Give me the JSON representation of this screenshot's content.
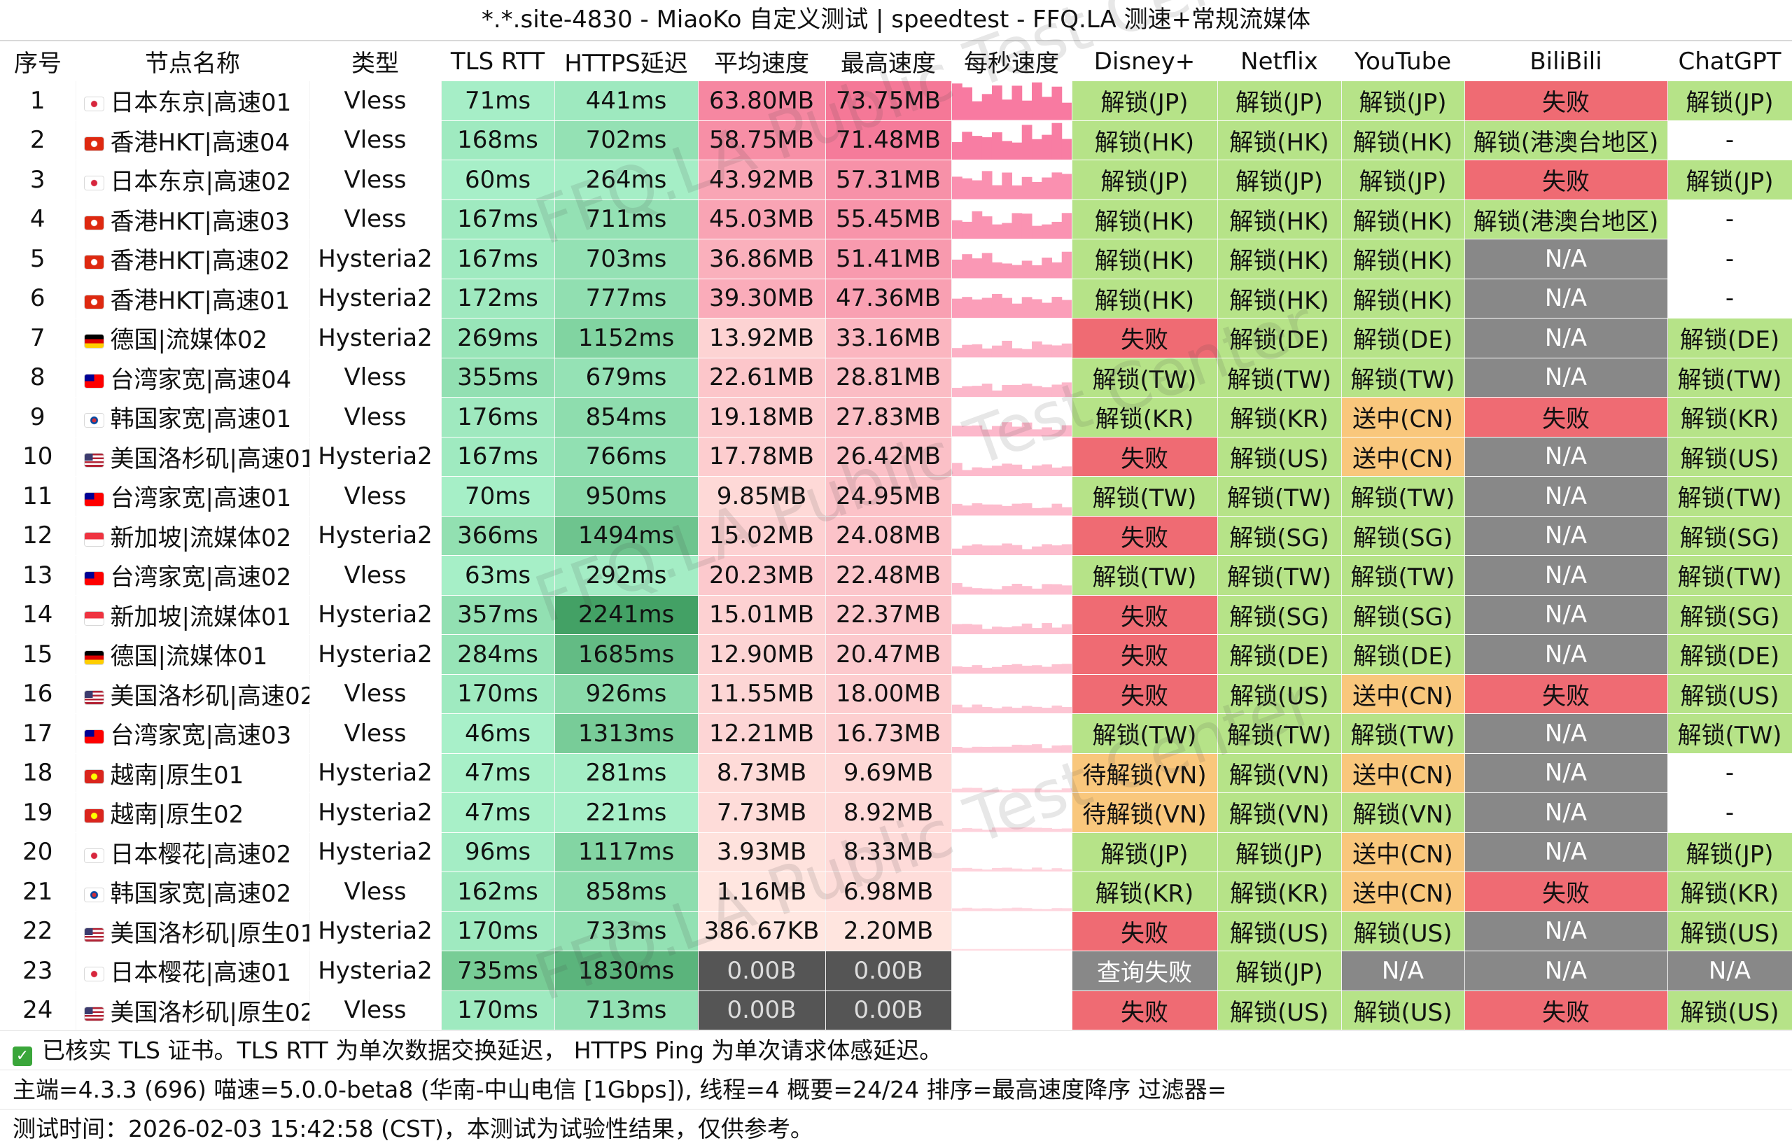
{
  "title": "*.*.site-4830 - MiaoKo 自定义测试 | speedtest - FFQ.LA 测速+常规流媒体",
  "headers": [
    "序号",
    "节点名称",
    "类型",
    "TLS RTT",
    "HTTPS延迟",
    "平均速度",
    "最高速度",
    "每秒速度",
    "Disney+",
    "Netflix",
    "YouTube",
    "BiliBili",
    "ChatGPT"
  ],
  "rows": [
    {
      "idx": "1",
      "flag": "jp",
      "name": "日本东京|高速01",
      "type": "Vless",
      "tls": "71ms",
      "https": "441ms",
      "avg": "63.80MB",
      "max": "73.75MB",
      "disney": "解锁(JP)",
      "netflix": "解锁(JP)",
      "youtube": "解锁(JP)",
      "bili": "失败",
      "gpt": "解锁(JP)"
    },
    {
      "idx": "2",
      "flag": "hk",
      "name": "香港HKT|高速04",
      "type": "Vless",
      "tls": "168ms",
      "https": "702ms",
      "avg": "58.75MB",
      "max": "71.48MB",
      "disney": "解锁(HK)",
      "netflix": "解锁(HK)",
      "youtube": "解锁(HK)",
      "bili": "解锁(港澳台地区)",
      "gpt": "-"
    },
    {
      "idx": "3",
      "flag": "jp",
      "name": "日本东京|高速02",
      "type": "Vless",
      "tls": "60ms",
      "https": "264ms",
      "avg": "43.92MB",
      "max": "57.31MB",
      "disney": "解锁(JP)",
      "netflix": "解锁(JP)",
      "youtube": "解锁(JP)",
      "bili": "失败",
      "gpt": "解锁(JP)"
    },
    {
      "idx": "4",
      "flag": "hk",
      "name": "香港HKT|高速03",
      "type": "Vless",
      "tls": "167ms",
      "https": "711ms",
      "avg": "45.03MB",
      "max": "55.45MB",
      "disney": "解锁(HK)",
      "netflix": "解锁(HK)",
      "youtube": "解锁(HK)",
      "bili": "解锁(港澳台地区)",
      "gpt": "-"
    },
    {
      "idx": "5",
      "flag": "hk",
      "name": "香港HKT|高速02",
      "type": "Hysteria2",
      "tls": "167ms",
      "https": "703ms",
      "avg": "36.86MB",
      "max": "51.41MB",
      "disney": "解锁(HK)",
      "netflix": "解锁(HK)",
      "youtube": "解锁(HK)",
      "bili": "N/A",
      "gpt": "-"
    },
    {
      "idx": "6",
      "flag": "hk",
      "name": "香港HKT|高速01",
      "type": "Hysteria2",
      "tls": "172ms",
      "https": "777ms",
      "avg": "39.30MB",
      "max": "47.36MB",
      "disney": "解锁(HK)",
      "netflix": "解锁(HK)",
      "youtube": "解锁(HK)",
      "bili": "N/A",
      "gpt": "-"
    },
    {
      "idx": "7",
      "flag": "de",
      "name": "德国|流媒体02",
      "type": "Hysteria2",
      "tls": "269ms",
      "https": "1152ms",
      "avg": "13.92MB",
      "max": "33.16MB",
      "disney": "失败",
      "netflix": "解锁(DE)",
      "youtube": "解锁(DE)",
      "bili": "N/A",
      "gpt": "解锁(DE)"
    },
    {
      "idx": "8",
      "flag": "tw",
      "name": "台湾家宽|高速04",
      "type": "Vless",
      "tls": "355ms",
      "https": "679ms",
      "avg": "22.61MB",
      "max": "28.81MB",
      "disney": "解锁(TW)",
      "netflix": "解锁(TW)",
      "youtube": "解锁(TW)",
      "bili": "N/A",
      "gpt": "解锁(TW)"
    },
    {
      "idx": "9",
      "flag": "kr",
      "name": "韩国家宽|高速01",
      "type": "Vless",
      "tls": "176ms",
      "https": "854ms",
      "avg": "19.18MB",
      "max": "27.83MB",
      "disney": "解锁(KR)",
      "netflix": "解锁(KR)",
      "youtube": "送中(CN)",
      "bili": "失败",
      "gpt": "解锁(KR)"
    },
    {
      "idx": "10",
      "flag": "us",
      "name": "美国洛杉矶|高速01",
      "type": "Hysteria2",
      "tls": "167ms",
      "https": "766ms",
      "avg": "17.78MB",
      "max": "26.42MB",
      "disney": "失败",
      "netflix": "解锁(US)",
      "youtube": "送中(CN)",
      "bili": "N/A",
      "gpt": "解锁(US)"
    },
    {
      "idx": "11",
      "flag": "tw",
      "name": "台湾家宽|高速01",
      "type": "Vless",
      "tls": "70ms",
      "https": "950ms",
      "avg": "9.85MB",
      "max": "24.95MB",
      "disney": "解锁(TW)",
      "netflix": "解锁(TW)",
      "youtube": "解锁(TW)",
      "bili": "N/A",
      "gpt": "解锁(TW)"
    },
    {
      "idx": "12",
      "flag": "sg",
      "name": "新加坡|流媒体02",
      "type": "Hysteria2",
      "tls": "366ms",
      "https": "1494ms",
      "avg": "15.02MB",
      "max": "24.08MB",
      "disney": "失败",
      "netflix": "解锁(SG)",
      "youtube": "解锁(SG)",
      "bili": "N/A",
      "gpt": "解锁(SG)"
    },
    {
      "idx": "13",
      "flag": "tw",
      "name": "台湾家宽|高速02",
      "type": "Vless",
      "tls": "63ms",
      "https": "292ms",
      "avg": "20.23MB",
      "max": "22.48MB",
      "disney": "解锁(TW)",
      "netflix": "解锁(TW)",
      "youtube": "解锁(TW)",
      "bili": "N/A",
      "gpt": "解锁(TW)"
    },
    {
      "idx": "14",
      "flag": "sg",
      "name": "新加坡|流媒体01",
      "type": "Hysteria2",
      "tls": "357ms",
      "https": "2241ms",
      "avg": "15.01MB",
      "max": "22.37MB",
      "disney": "失败",
      "netflix": "解锁(SG)",
      "youtube": "解锁(SG)",
      "bili": "N/A",
      "gpt": "解锁(SG)"
    },
    {
      "idx": "15",
      "flag": "de",
      "name": "德国|流媒体01",
      "type": "Hysteria2",
      "tls": "284ms",
      "https": "1685ms",
      "avg": "12.90MB",
      "max": "20.47MB",
      "disney": "失败",
      "netflix": "解锁(DE)",
      "youtube": "解锁(DE)",
      "bili": "N/A",
      "gpt": "解锁(DE)"
    },
    {
      "idx": "16",
      "flag": "us",
      "name": "美国洛杉矶|高速02",
      "type": "Vless",
      "tls": "170ms",
      "https": "926ms",
      "avg": "11.55MB",
      "max": "18.00MB",
      "disney": "失败",
      "netflix": "解锁(US)",
      "youtube": "送中(CN)",
      "bili": "失败",
      "gpt": "解锁(US)"
    },
    {
      "idx": "17",
      "flag": "tw",
      "name": "台湾家宽|高速03",
      "type": "Vless",
      "tls": "46ms",
      "https": "1313ms",
      "avg": "12.21MB",
      "max": "16.73MB",
      "disney": "解锁(TW)",
      "netflix": "解锁(TW)",
      "youtube": "解锁(TW)",
      "bili": "N/A",
      "gpt": "解锁(TW)"
    },
    {
      "idx": "18",
      "flag": "vn",
      "name": "越南|原生01",
      "type": "Hysteria2",
      "tls": "47ms",
      "https": "281ms",
      "avg": "8.73MB",
      "max": "9.69MB",
      "disney": "待解锁(VN)",
      "netflix": "解锁(VN)",
      "youtube": "送中(CN)",
      "bili": "N/A",
      "gpt": "-"
    },
    {
      "idx": "19",
      "flag": "vn",
      "name": "越南|原生02",
      "type": "Hysteria2",
      "tls": "47ms",
      "https": "221ms",
      "avg": "7.73MB",
      "max": "8.92MB",
      "disney": "待解锁(VN)",
      "netflix": "解锁(VN)",
      "youtube": "解锁(VN)",
      "bili": "N/A",
      "gpt": "-"
    },
    {
      "idx": "20",
      "flag": "jp",
      "name": "日本樱花|高速02",
      "type": "Hysteria2",
      "tls": "96ms",
      "https": "1117ms",
      "avg": "3.93MB",
      "max": "8.33MB",
      "disney": "解锁(JP)",
      "netflix": "解锁(JP)",
      "youtube": "送中(CN)",
      "bili": "N/A",
      "gpt": "解锁(JP)"
    },
    {
      "idx": "21",
      "flag": "kr",
      "name": "韩国家宽|高速02",
      "type": "Vless",
      "tls": "162ms",
      "https": "858ms",
      "avg": "1.16MB",
      "max": "6.98MB",
      "disney": "解锁(KR)",
      "netflix": "解锁(KR)",
      "youtube": "送中(CN)",
      "bili": "失败",
      "gpt": "解锁(KR)"
    },
    {
      "idx": "22",
      "flag": "us",
      "name": "美国洛杉矶|原生01",
      "type": "Hysteria2",
      "tls": "170ms",
      "https": "733ms",
      "avg": "386.67KB",
      "max": "2.20MB",
      "disney": "失败",
      "netflix": "解锁(US)",
      "youtube": "解锁(US)",
      "bili": "N/A",
      "gpt": "解锁(US)"
    },
    {
      "idx": "23",
      "flag": "jp",
      "name": "日本樱花|高速01",
      "type": "Hysteria2",
      "tls": "735ms",
      "https": "1830ms",
      "avg": "0.00B",
      "max": "0.00B",
      "disney": "查询失败",
      "netflix": "解锁(JP)",
      "youtube": "N/A",
      "bili": "N/A",
      "gpt": "N/A"
    },
    {
      "idx": "24",
      "flag": "us",
      "name": "美国洛杉矶|原生02",
      "type": "Vless",
      "tls": "170ms",
      "https": "713ms",
      "avg": "0.00B",
      "max": "0.00B",
      "disney": "失败",
      "netflix": "解锁(US)",
      "youtube": "解锁(US)",
      "bili": "失败",
      "gpt": "解锁(US)"
    }
  ],
  "footer": {
    "line1": "已核实 TLS 证书。TLS RTT 为单次数据交换延迟， HTTPS Ping 为单次请求体感延迟。",
    "line2": "主端=4.3.3 (696) 喵速=5.0.0-beta8 (华南-中山电信 [1Gbps]), 线程=4 概要=24/24 排序=最高速度降序 过滤器=",
    "line3": "测试时间：2026-02-03 15:42:58 (CST)，本测试为试验性结果，仅供参考。"
  },
  "watermark": "FFQ.LA Public Test Center",
  "colors": {
    "unlock": "#b6e388",
    "fail": "#ef6b73",
    "pending": "#f9c77c",
    "na_gray": "#888888",
    "query_fail": "#888888",
    "zero_speed": "#555555",
    "tls_green": "#a8f0c9",
    "dash": "#ffffff"
  }
}
